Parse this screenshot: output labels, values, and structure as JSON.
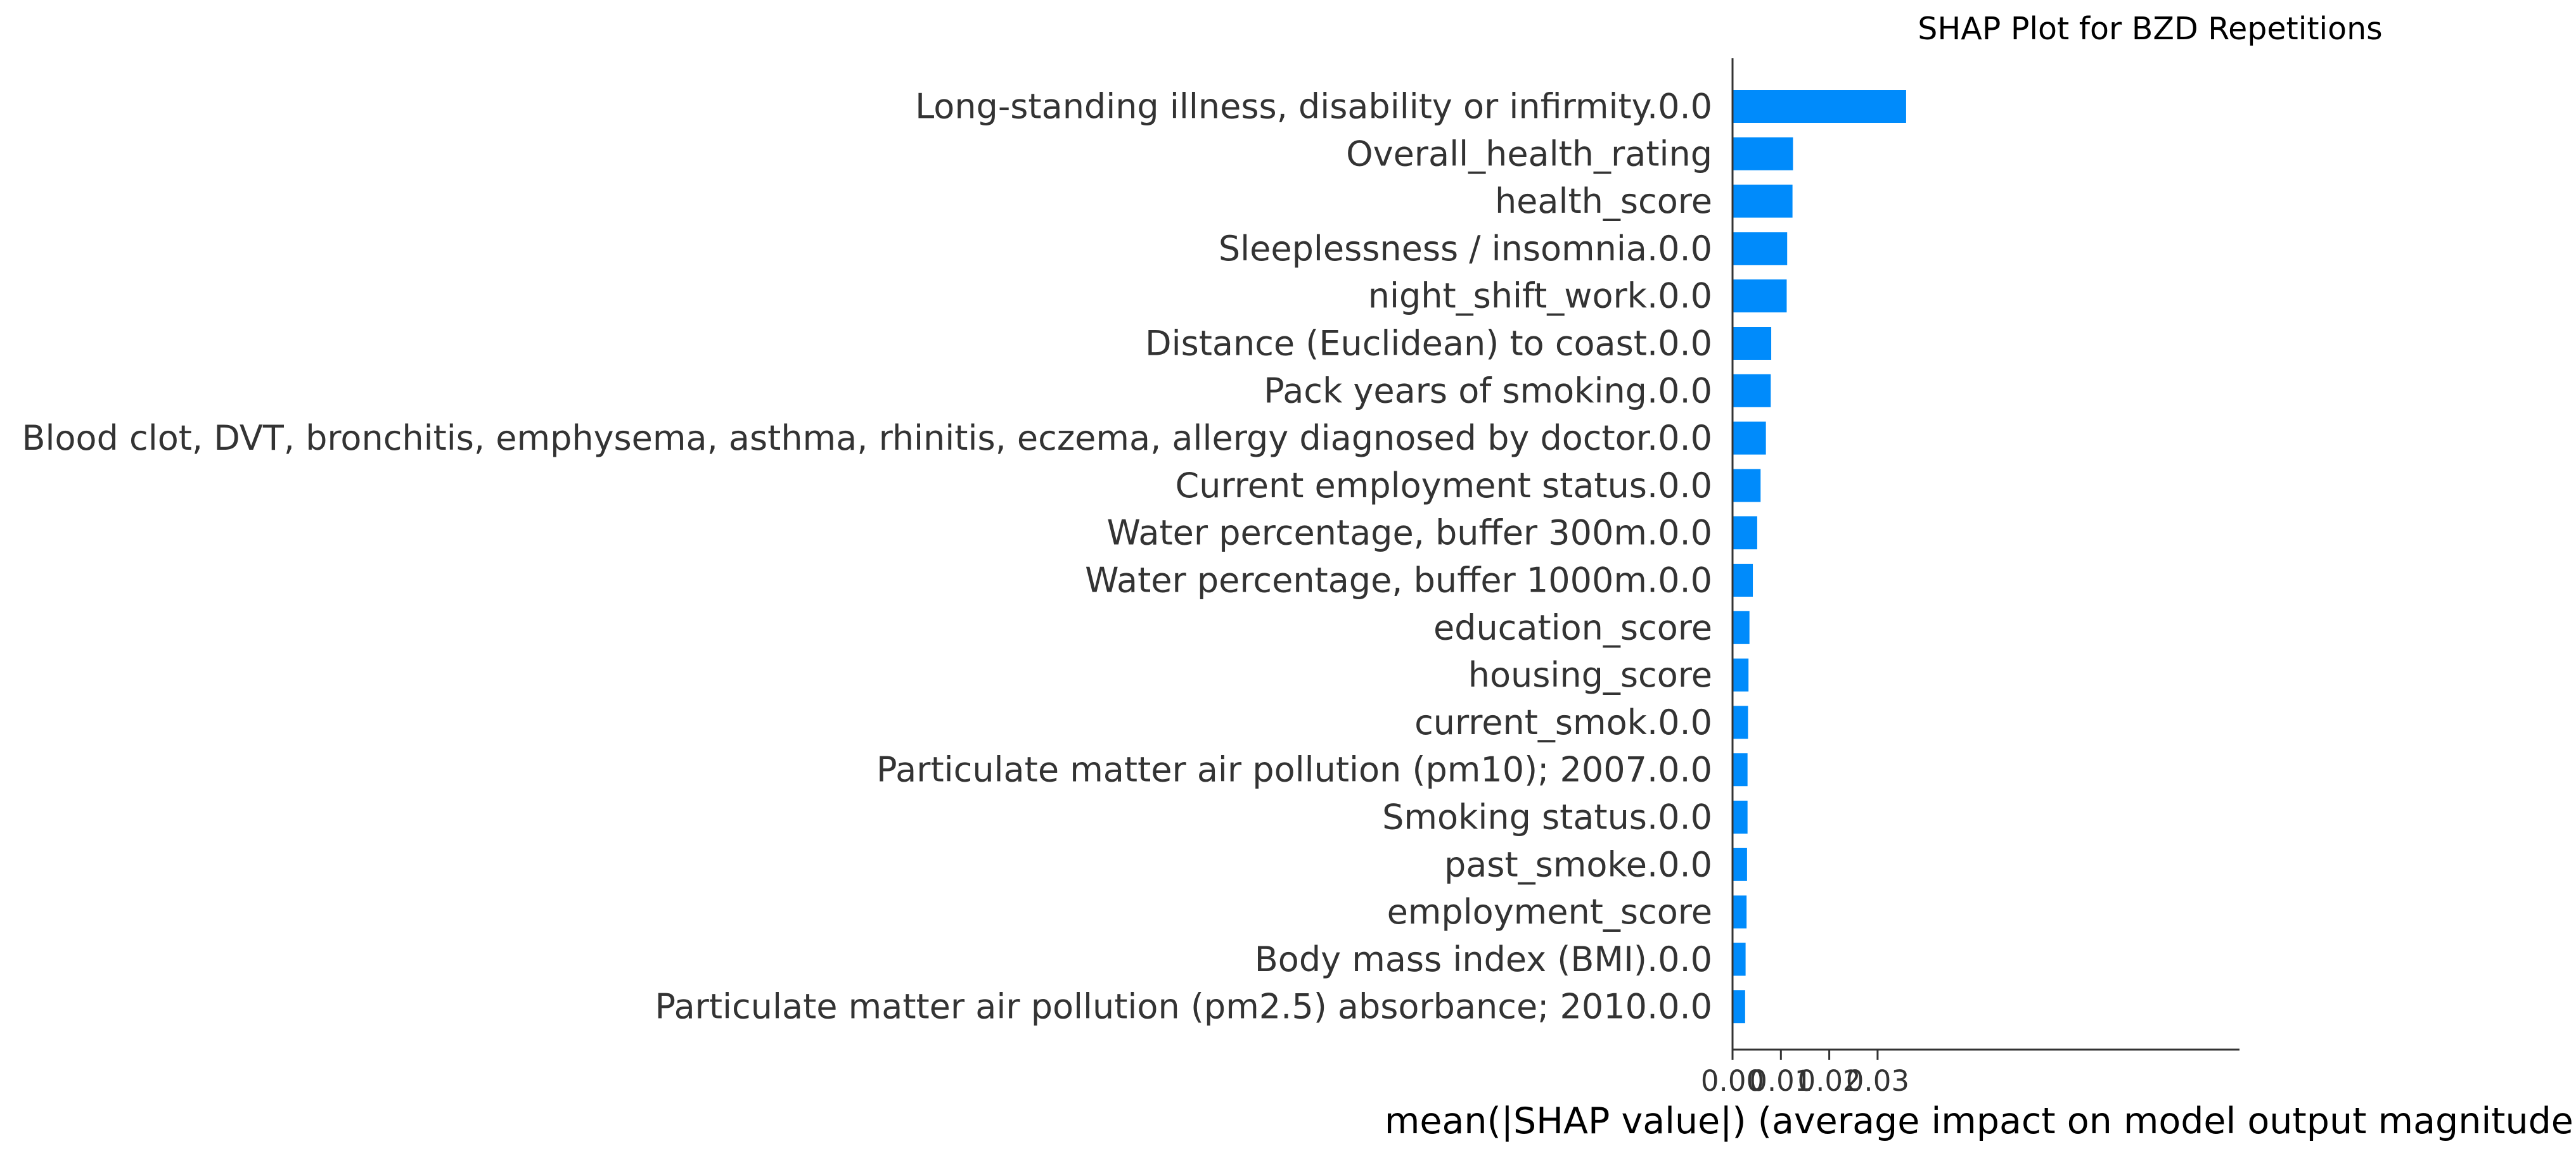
{
  "chart_data": {
    "type": "bar",
    "orientation": "horizontal",
    "title": "SHAP Plot for BZD Repetitions",
    "xlabel": "mean(|SHAP value|) (average impact on model output magnitude)",
    "ylabel": "",
    "categories": [
      "Long-standing illness, disability or infirmity.0.0",
      "Overall_health_rating",
      "health_score",
      "Sleeplessness / insomnia.0.0",
      "night_shift_work.0.0",
      "Distance (Euclidean) to coast.0.0",
      "Pack years of smoking.0.0",
      "Blood clot, DVT, bronchitis, emphysema, asthma, rhinitis, eczema, allergy diagnosed by doctor.0.0",
      "Current employment status.0.0",
      "Water percentage, buffer 300m.0.0",
      "Water percentage, buffer 1000m.0.0",
      "education_score",
      "housing_score",
      "current_smok.0.0",
      "Particulate matter air pollution (pm10); 2007.0.0",
      "Smoking status.0.0",
      "past_smoke.0.0",
      "employment_score",
      "Body mass index (BMI).0.0",
      "Particulate matter air pollution (pm2.5) absorbance; 2010.0.0"
    ],
    "values": [
      0.0359,
      0.0125,
      0.0124,
      0.0113,
      0.0112,
      0.008,
      0.0079,
      0.0069,
      0.0058,
      0.0051,
      0.0042,
      0.0035,
      0.0033,
      0.0032,
      0.0031,
      0.0031,
      0.003,
      0.0029,
      0.0027,
      0.0026
    ],
    "xlim": [
      0.0,
      0.0378
    ],
    "xticks": [
      0.0,
      0.01,
      0.02,
      0.03
    ],
    "xtick_labels": [
      "0.00",
      "0.01",
      "0.02",
      "0.03"
    ],
    "grid": false,
    "bar_color": "#008bfb"
  }
}
